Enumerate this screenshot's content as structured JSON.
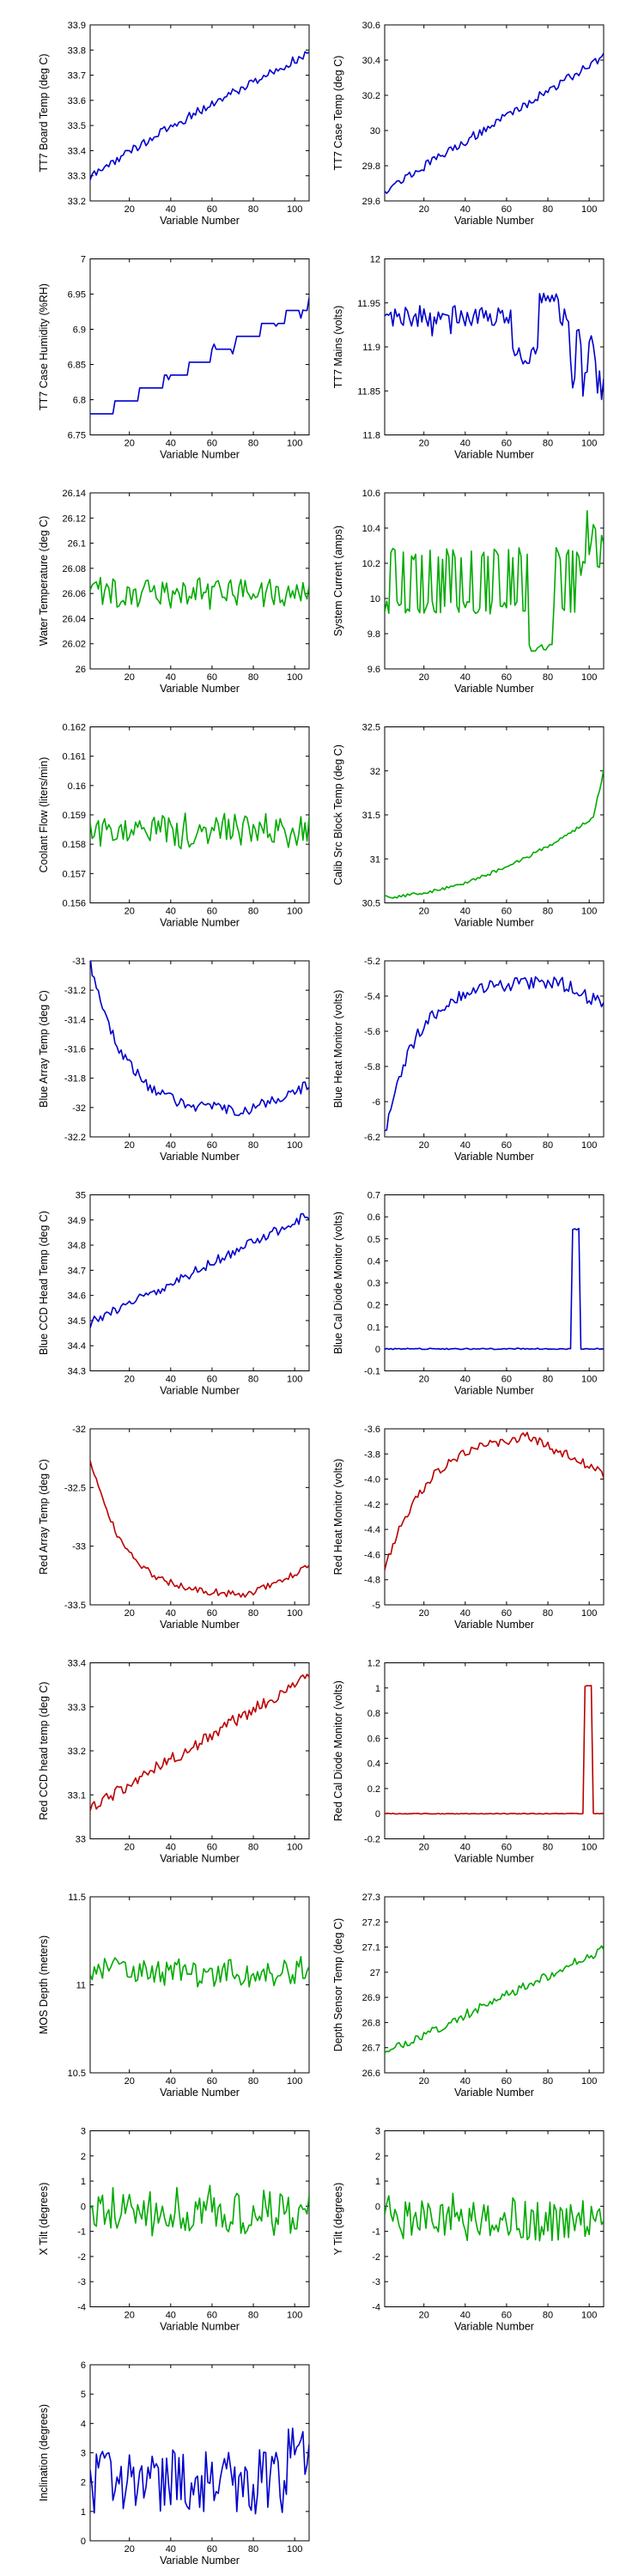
{
  "chart_data": [
    {
      "type": "line",
      "ylabel": "TT7 Board Temp (deg C)",
      "xlabel": "Variable Number",
      "xlim": [
        1,
        107
      ],
      "ylim": [
        33.2,
        33.9
      ],
      "xticks": [
        20,
        40,
        60,
        80,
        100
      ],
      "yticks": [
        "33.2",
        "33.3",
        "33.4",
        "33.5",
        "33.6",
        "33.7",
        "33.8",
        "33.9"
      ],
      "color": "#0000cc",
      "profile": "ramp",
      "shape": [
        33.29,
        33.79,
        0.018,
        0.9
      ]
    },
    {
      "type": "line",
      "ylabel": "TT7 Case Temp (deg C)",
      "xlabel": "Variable Number",
      "xlim": [
        1,
        107
      ],
      "ylim": [
        29.6,
        30.6
      ],
      "xticks": [
        20,
        40,
        60,
        80,
        100
      ],
      "yticks": [
        "29.6",
        "29.8",
        "30",
        "30.2",
        "30.4",
        "30.6"
      ],
      "color": "#0000cc",
      "profile": "ramp",
      "shape": [
        29.66,
        30.42,
        0.025,
        1.0
      ]
    },
    {
      "type": "line",
      "ylabel": "TT7 Case Humidity (%RH)",
      "xlabel": "Variable Number",
      "xlim": [
        1,
        107
      ],
      "ylim": [
        6.75,
        7.0
      ],
      "xticks": [
        20,
        40,
        60,
        80,
        100
      ],
      "yticks": [
        "6.75",
        "6.8",
        "6.85",
        "6.9",
        "6.95",
        "7"
      ],
      "color": "#0000cc",
      "profile": "steps",
      "shape": [
        6.78,
        6.945,
        0.01,
        1.1
      ]
    },
    {
      "type": "line",
      "ylabel": "TT7 Mains  (volts)",
      "xlabel": "Variable Number",
      "xlim": [
        1,
        107
      ],
      "ylim": [
        11.8,
        12.0
      ],
      "xticks": [
        20,
        40,
        60,
        80,
        100
      ],
      "yticks": [
        "11.8",
        "11.85",
        "11.9",
        "11.95",
        "12"
      ],
      "color": "#0000cc",
      "profile": "mains",
      "shape": [
        11.935,
        0.02
      ]
    },
    {
      "type": "line",
      "ylabel": "Water Temperature (deg C)",
      "xlabel": "Variable Number",
      "xlim": [
        1,
        107
      ],
      "ylim": [
        26.0,
        26.14
      ],
      "xticks": [
        20,
        40,
        60,
        80,
        100
      ],
      "yticks": [
        "26",
        "26.02",
        "26.04",
        "26.06",
        "26.08",
        "26.1",
        "26.12",
        "26.14"
      ],
      "color": "#00aa00",
      "profile": "noise",
      "shape": [
        26.06,
        0.015,
        0
      ]
    },
    {
      "type": "line",
      "ylabel": "System Current (amps)",
      "xlabel": "Variable Number",
      "xlim": [
        1,
        107
      ],
      "ylim": [
        9.6,
        10.6
      ],
      "xticks": [
        20,
        40,
        60,
        80,
        100
      ],
      "yticks": [
        "9.6",
        "9.8",
        "10",
        "10.2",
        "10.4",
        "10.6"
      ],
      "color": "#00aa00",
      "profile": "current",
      "shape": [
        9.95,
        10.25
      ]
    },
    {
      "type": "line",
      "ylabel": "Coolant Flow (liters/min)",
      "xlabel": "Variable Number",
      "xlim": [
        1,
        107
      ],
      "ylim": [
        0.156,
        0.162
      ],
      "xticks": [
        20,
        40,
        60,
        80,
        100
      ],
      "yticks": [
        "0.156",
        "0.157",
        "0.158",
        "0.159",
        "0.16",
        "0.161",
        "0.162"
      ],
      "color": "#00aa00",
      "profile": "noise",
      "shape": [
        0.1585,
        0.0007,
        0
      ]
    },
    {
      "type": "line",
      "ylabel": "Calib Src Block Temp (deg C)",
      "xlabel": "Variable Number",
      "xlim": [
        1,
        107
      ],
      "ylim": [
        30.5,
        32.5
      ],
      "xticks": [
        20,
        40,
        60,
        80,
        100
      ],
      "yticks": [
        "30.5",
        "31",
        "31.5",
        "32",
        "32.5"
      ],
      "color": "#00aa00",
      "profile": "ramp_jump",
      "shape": [
        30.57,
        31.55,
        0.02,
        1.8
      ]
    },
    {
      "type": "line",
      "ylabel": "Blue Array Temp (deg C)",
      "xlabel": "Variable Number",
      "xlim": [
        1,
        107
      ],
      "ylim": [
        -32.2,
        -31.0
      ],
      "xticks": [
        20,
        40,
        60,
        80,
        100
      ],
      "yticks": [
        "-32.2",
        "-32",
        "-31.8",
        "-31.6",
        "-31.4",
        "-31.2",
        "-31"
      ],
      "color": "#0000cc",
      "profile": "decay",
      "shape": [
        -31.0,
        -32.03,
        -31.85,
        0.04
      ]
    },
    {
      "type": "line",
      "ylabel": "Blue Heat Monitor (volts)",
      "xlabel": "Variable Number",
      "xlim": [
        1,
        107
      ],
      "ylim": [
        -6.2,
        -5.2
      ],
      "xticks": [
        20,
        40,
        60,
        80,
        100
      ],
      "yticks": [
        "-6.2",
        "-6",
        "-5.8",
        "-5.6",
        "-5.4",
        "-5.2"
      ],
      "color": "#0000cc",
      "profile": "rise",
      "shape": [
        -6.2,
        -5.32,
        -5.45,
        0.04
      ]
    },
    {
      "type": "line",
      "ylabel": "Blue CCD Head Temp (deg C)",
      "xlabel": "Variable Number",
      "xlim": [
        1,
        107
      ],
      "ylim": [
        34.3,
        35.0
      ],
      "xticks": [
        20,
        40,
        60,
        80,
        100
      ],
      "yticks": [
        "34.3",
        "34.4",
        "34.5",
        "34.6",
        "34.7",
        "34.8",
        "34.9",
        "35"
      ],
      "color": "#0000cc",
      "profile": "ramp",
      "shape": [
        34.49,
        34.92,
        0.02,
        1.0
      ]
    },
    {
      "type": "line",
      "ylabel": "Blue Cal Diode Monitor (volts)",
      "xlabel": "Variable Number",
      "xlim": [
        1,
        107
      ],
      "ylim": [
        -0.1,
        0.7
      ],
      "xticks": [
        20,
        40,
        60,
        80,
        100
      ],
      "yticks": [
        "-0.1",
        "0",
        "0.1",
        "0.2",
        "0.3",
        "0.4",
        "0.5",
        "0.6",
        "0.7"
      ],
      "color": "#0000cc",
      "profile": "spike",
      "shape": [
        0.0,
        0.55,
        92,
        95
      ]
    },
    {
      "type": "line",
      "ylabel": "Red Array Temp (deg C)",
      "xlabel": "Variable Number",
      "xlim": [
        1,
        107
      ],
      "ylim": [
        -33.5,
        -32.0
      ],
      "xticks": [
        20,
        40,
        60,
        80,
        100
      ],
      "yticks": [
        "-33.5",
        "-33",
        "-32.5",
        "-32"
      ],
      "color": "#bb0000",
      "profile": "decay",
      "shape": [
        -32.25,
        -33.42,
        -33.18,
        0.03
      ]
    },
    {
      "type": "line",
      "ylabel": "Red Heat Monitor (volts)",
      "xlabel": "Variable Number",
      "xlim": [
        1,
        107
      ],
      "ylim": [
        -5.0,
        -3.6
      ],
      "xticks": [
        20,
        40,
        60,
        80,
        100
      ],
      "yticks": [
        "-5",
        "-4.8",
        "-4.6",
        "-4.4",
        "-4.2",
        "-4.0",
        "-3.8",
        "-3.6"
      ],
      "color": "#bb0000",
      "profile": "arch",
      "shape": [
        -4.7,
        -3.62,
        -3.95,
        0.04
      ]
    },
    {
      "type": "line",
      "ylabel": "Red CCD head temp (deg C)",
      "xlabel": "Variable Number",
      "xlim": [
        1,
        107
      ],
      "ylim": [
        33.0,
        33.4
      ],
      "xticks": [
        20,
        40,
        60,
        80,
        100
      ],
      "yticks": [
        "33",
        "33.1",
        "33.2",
        "33.3",
        "33.4"
      ],
      "color": "#bb0000",
      "profile": "ramp",
      "shape": [
        33.07,
        33.37,
        0.015,
        1.0
      ]
    },
    {
      "type": "line",
      "ylabel": "Red Cal Diode Monitor (volts)",
      "xlabel": "Variable Number",
      "xlim": [
        1,
        107
      ],
      "ylim": [
        -0.2,
        1.2
      ],
      "xticks": [
        20,
        40,
        60,
        80,
        100
      ],
      "yticks": [
        "-0.2",
        "0",
        "0.2",
        "0.4",
        "0.6",
        "0.8",
        "1",
        "1.2"
      ],
      "color": "#bb0000",
      "profile": "spike",
      "shape": [
        0.0,
        1.02,
        98,
        101
      ]
    },
    {
      "type": "line",
      "ylabel": "MOS Depth  (meters)",
      "xlabel": "Variable Number",
      "xlim": [
        1,
        107
      ],
      "ylim": [
        10.5,
        11.5
      ],
      "xticks": [
        20,
        40,
        60,
        80,
        100
      ],
      "yticks": [
        "10.5",
        "11",
        "11.5"
      ],
      "color": "#00aa00",
      "profile": "noise",
      "shape": [
        11.07,
        0.09,
        0
      ]
    },
    {
      "type": "line",
      "ylabel": "Depth Sensor Temp (deg C)",
      "xlabel": "Variable Number",
      "xlim": [
        1,
        107
      ],
      "ylim": [
        26.6,
        27.3
      ],
      "xticks": [
        20,
        40,
        60,
        80,
        100
      ],
      "yticks": [
        "26.6",
        "26.7",
        "26.8",
        "26.9",
        "27",
        "27.1",
        "27.2",
        "27.3"
      ],
      "color": "#00aa00",
      "profile": "ramp",
      "shape": [
        26.68,
        27.09,
        0.02,
        1.0
      ]
    },
    {
      "type": "line",
      "ylabel": "X Tilt  (degrees)",
      "xlabel": "Variable Number",
      "xlim": [
        1,
        107
      ],
      "ylim": [
        -4,
        3
      ],
      "xticks": [
        20,
        40,
        60,
        80,
        100
      ],
      "yticks": [
        "-4",
        "-3",
        "-2",
        "-1",
        "0",
        "1",
        "2",
        "3"
      ],
      "color": "#00aa00",
      "profile": "noise",
      "shape": [
        -0.2,
        1.1,
        1
      ]
    },
    {
      "type": "line",
      "ylabel": "Y Tilt  (degrees)",
      "xlabel": "Variable Number",
      "xlim": [
        1,
        107
      ],
      "ylim": [
        -4,
        3
      ],
      "xticks": [
        20,
        40,
        60,
        80,
        100
      ],
      "yticks": [
        "-4",
        "-3",
        "-2",
        "-1",
        "0",
        "1",
        "2",
        "3"
      ],
      "color": "#00aa00",
      "profile": "noise",
      "shape": [
        -0.5,
        1.05,
        1
      ]
    },
    {
      "type": "line",
      "ylabel": "Inclination  (degrees)",
      "xlabel": "Variable Number",
      "xlim": [
        1,
        107
      ],
      "ylim": [
        0,
        6
      ],
      "xticks": [
        20,
        40,
        60,
        80,
        100
      ],
      "yticks": [
        "0",
        "1",
        "2",
        "3",
        "4",
        "5",
        "6"
      ],
      "color": "#0000cc",
      "profile": "incl",
      "shape": [
        2.0,
        1.1
      ]
    }
  ]
}
